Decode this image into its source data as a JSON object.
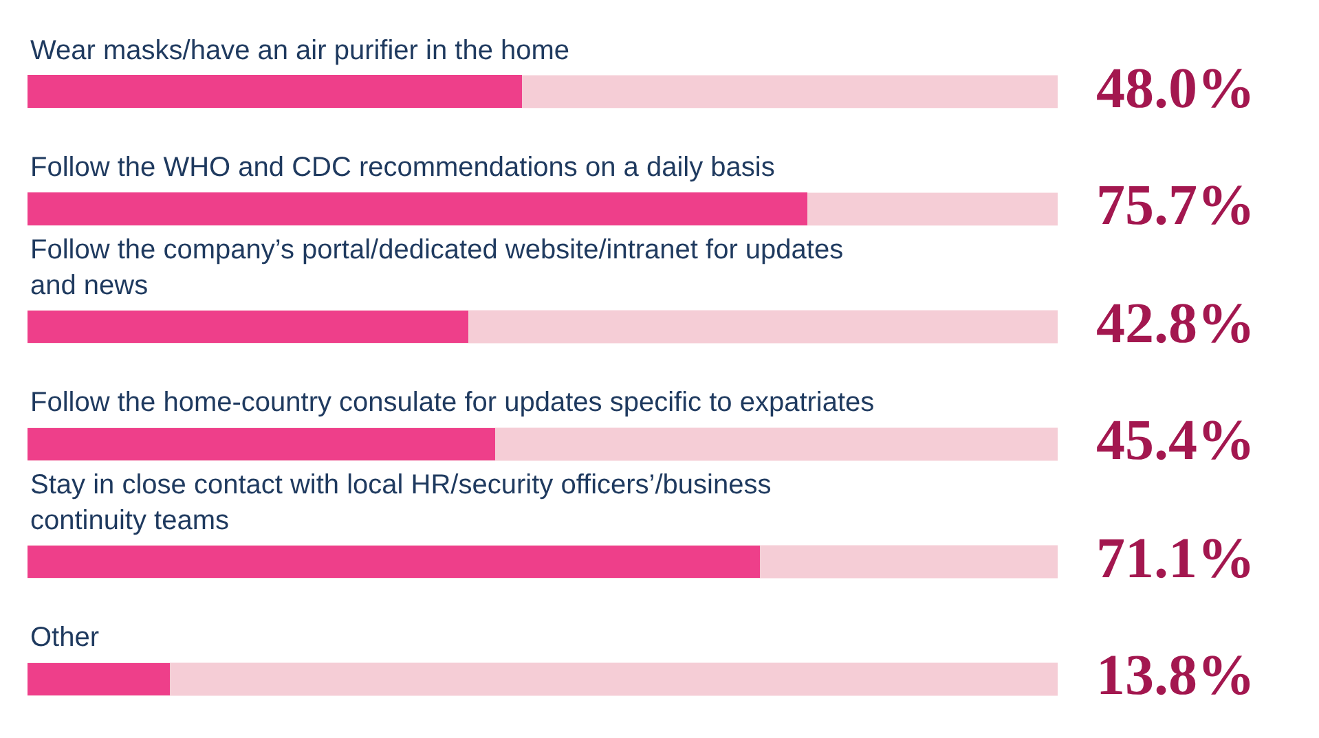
{
  "chart_data": {
    "type": "bar",
    "orientation": "horizontal",
    "categories": [
      "Wear masks/have an air purifier in the home",
      "Follow the WHO and CDC recommendations on a daily basis",
      "Follow the company’s portal/dedicated website/intranet for updates and news",
      "Follow the home-country consulate for updates specific to expatriates",
      "Stay in close contact with local HR/security officers’/business continuity teams",
      "Other"
    ],
    "values": [
      48.0,
      75.7,
      42.8,
      45.4,
      71.1,
      13.8
    ],
    "value_labels": [
      "48.0%",
      "75.7%",
      "42.8%",
      "45.4%",
      "71.1%",
      "13.8%"
    ],
    "color": "#ee3f8a",
    "xlim": [
      0,
      100
    ]
  }
}
